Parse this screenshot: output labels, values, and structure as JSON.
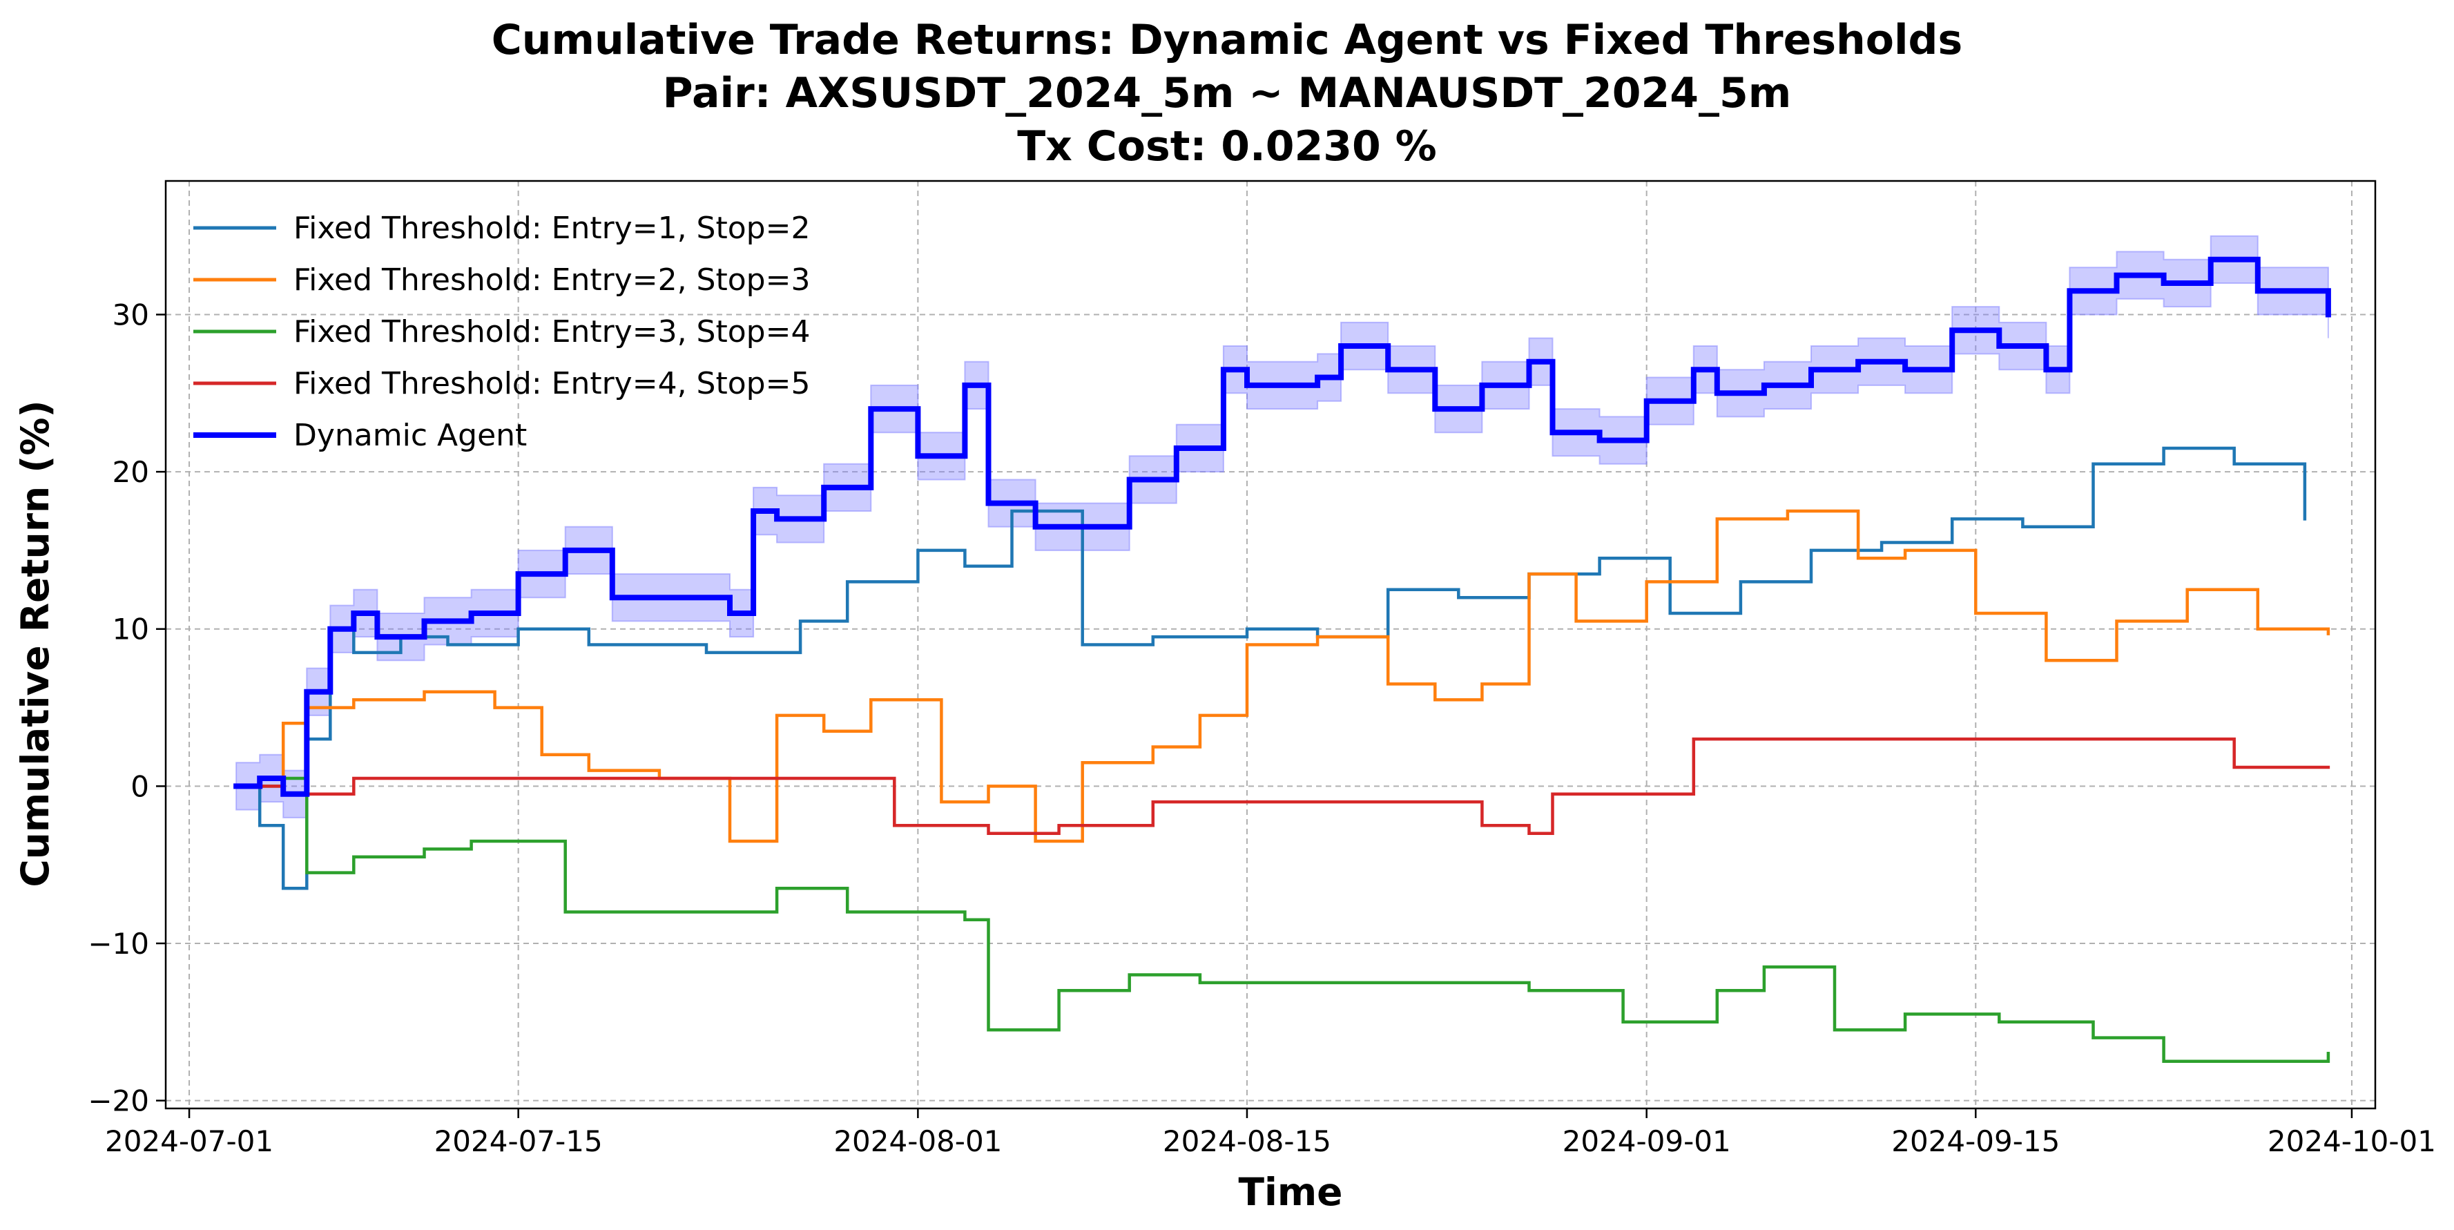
{
  "chart_data": {
    "type": "line",
    "title_lines": [
      "Cumulative Trade Returns: Dynamic Agent vs Fixed Thresholds",
      "Pair: AXSUSDT_2024_5m ~ MANAUSDT_2024_5m",
      "Tx Cost: 0.0230 %"
    ],
    "xlabel": "Time",
    "ylabel": "Cumulative Return (%)",
    "x_type": "date",
    "xlim": [
      "2024-06-30",
      "2024-10-02"
    ],
    "ylim": [
      -20.5,
      38.5
    ],
    "x_ticks": [
      "2024-07-01",
      "2024-07-15",
      "2024-08-01",
      "2024-08-15",
      "2024-09-01",
      "2024-09-15",
      "2024-10-01"
    ],
    "y_ticks": [
      -20,
      -10,
      0,
      10,
      20,
      30
    ],
    "grid": true,
    "legend_position": "top-left",
    "step": true,
    "series": [
      {
        "name": "Fixed Threshold: Entry=1, Stop=2",
        "color": "#1f77b4",
        "x": [
          "2024-07-03",
          "2024-07-04",
          "2024-07-05",
          "2024-07-06",
          "2024-07-07",
          "2024-07-08",
          "2024-07-10",
          "2024-07-12",
          "2024-07-15",
          "2024-07-18",
          "2024-07-20",
          "2024-07-23",
          "2024-07-25",
          "2024-07-27",
          "2024-07-29",
          "2024-08-01",
          "2024-08-03",
          "2024-08-05",
          "2024-08-08",
          "2024-08-11",
          "2024-08-15",
          "2024-08-18",
          "2024-08-21",
          "2024-08-24",
          "2024-08-27",
          "2024-08-30",
          "2024-09-02",
          "2024-09-05",
          "2024-09-08",
          "2024-09-11",
          "2024-09-14",
          "2024-09-17",
          "2024-09-20",
          "2024-09-23",
          "2024-09-26",
          "2024-09-29"
        ],
        "y": [
          0,
          -2.5,
          -6.5,
          3,
          10,
          8.5,
          9.5,
          9,
          10,
          9,
          9,
          8.5,
          8.5,
          10.5,
          13,
          15,
          14,
          17.5,
          9,
          9.5,
          10,
          9.5,
          12.5,
          12,
          13.5,
          14.5,
          11,
          13,
          15,
          15.5,
          17,
          16.5,
          20.5,
          21.5,
          20.5,
          17
        ]
      },
      {
        "name": "Fixed Threshold: Entry=2, Stop=3",
        "color": "#ff7f0e",
        "x": [
          "2024-07-03",
          "2024-07-05",
          "2024-07-06",
          "2024-07-08",
          "2024-07-11",
          "2024-07-14",
          "2024-07-16",
          "2024-07-18",
          "2024-07-21",
          "2024-07-24",
          "2024-07-26",
          "2024-07-28",
          "2024-07-30",
          "2024-08-02",
          "2024-08-04",
          "2024-08-06",
          "2024-08-08",
          "2024-08-11",
          "2024-08-13",
          "2024-08-15",
          "2024-08-18",
          "2024-08-21",
          "2024-08-23",
          "2024-08-25",
          "2024-08-27",
          "2024-08-29",
          "2024-09-01",
          "2024-09-04",
          "2024-09-07",
          "2024-09-10",
          "2024-09-12",
          "2024-09-15",
          "2024-09-18",
          "2024-09-21",
          "2024-09-24",
          "2024-09-27",
          "2024-09-30"
        ],
        "y": [
          0,
          4,
          5,
          5.5,
          6,
          5,
          2,
          1,
          0.5,
          -3.5,
          4.5,
          3.5,
          5.5,
          -1,
          0,
          -3.5,
          1.5,
          2.5,
          4.5,
          9,
          9.5,
          6.5,
          5.5,
          6.5,
          13.5,
          10.5,
          13,
          17,
          17.5,
          14.5,
          15,
          11,
          8,
          10.5,
          12.5,
          10,
          9.7
        ]
      },
      {
        "name": "Fixed Threshold: Entry=3, Stop=4",
        "color": "#2ca02c",
        "x": [
          "2024-07-03",
          "2024-07-05",
          "2024-07-06",
          "2024-07-08",
          "2024-07-11",
          "2024-07-13",
          "2024-07-17",
          "2024-07-23",
          "2024-07-26",
          "2024-07-29",
          "2024-08-03",
          "2024-08-04",
          "2024-08-07",
          "2024-08-10",
          "2024-08-13",
          "2024-08-17",
          "2024-08-22",
          "2024-08-27",
          "2024-08-31",
          "2024-09-04",
          "2024-09-06",
          "2024-09-09",
          "2024-09-12",
          "2024-09-16",
          "2024-09-20",
          "2024-09-23",
          "2024-09-30"
        ],
        "y": [
          0,
          0.5,
          -5.5,
          -4.5,
          -4,
          -3.5,
          -8,
          -8,
          -6.5,
          -8,
          -8.5,
          -15.5,
          -13,
          -12,
          -12.5,
          -12.5,
          -12.5,
          -13,
          -15,
          -13,
          -11.5,
          -15.5,
          -14.5,
          -15,
          -16,
          -17.5,
          -17
        ]
      },
      {
        "name": "Fixed Threshold: Entry=4, Stop=5",
        "color": "#d62728",
        "x": [
          "2024-07-03",
          "2024-07-05",
          "2024-07-08",
          "2024-07-15",
          "2024-07-31",
          "2024-08-04",
          "2024-08-07",
          "2024-08-11",
          "2024-08-18",
          "2024-08-22",
          "2024-08-25",
          "2024-08-27",
          "2024-08-28",
          "2024-09-03",
          "2024-09-26",
          "2024-09-30"
        ],
        "y": [
          0,
          -0.5,
          0.5,
          0.5,
          -2.5,
          -3,
          -2.5,
          -1,
          -1,
          -1,
          -2.5,
          -3,
          -0.5,
          3,
          1.2,
          1.2
        ]
      },
      {
        "name": "Dynamic Agent",
        "color": "#0000ff",
        "band_color": "#8080ff",
        "band_halfwidth": 1.5,
        "x": [
          "2024-07-03",
          "2024-07-04",
          "2024-07-05",
          "2024-07-06",
          "2024-07-07",
          "2024-07-08",
          "2024-07-09",
          "2024-07-11",
          "2024-07-13",
          "2024-07-15",
          "2024-07-17",
          "2024-07-19",
          "2024-07-21",
          "2024-07-24",
          "2024-07-25",
          "2024-07-26",
          "2024-07-28",
          "2024-07-30",
          "2024-08-01",
          "2024-08-03",
          "2024-08-04",
          "2024-08-06",
          "2024-08-08",
          "2024-08-10",
          "2024-08-12",
          "2024-08-14",
          "2024-08-15",
          "2024-08-18",
          "2024-08-19",
          "2024-08-21",
          "2024-08-23",
          "2024-08-25",
          "2024-08-27",
          "2024-08-28",
          "2024-08-30",
          "2024-09-01",
          "2024-09-03",
          "2024-09-04",
          "2024-09-06",
          "2024-09-08",
          "2024-09-10",
          "2024-09-12",
          "2024-09-14",
          "2024-09-16",
          "2024-09-18",
          "2024-09-19",
          "2024-09-21",
          "2024-09-23",
          "2024-09-25",
          "2024-09-27",
          "2024-09-30"
        ],
        "y": [
          0,
          0.5,
          -0.5,
          6,
          10,
          11,
          9.5,
          10.5,
          11,
          13.5,
          15,
          12,
          12,
          11,
          17.5,
          17,
          19,
          24,
          21,
          25.5,
          18,
          16.5,
          16.5,
          19.5,
          21.5,
          26.5,
          25.5,
          26,
          28,
          26.5,
          24,
          25.5,
          27,
          22.5,
          22,
          24.5,
          26.5,
          25,
          25.5,
          26.5,
          27,
          26.5,
          29,
          28,
          26.5,
          31.5,
          32.5,
          32,
          33.5,
          31.5,
          30
        ]
      }
    ]
  }
}
